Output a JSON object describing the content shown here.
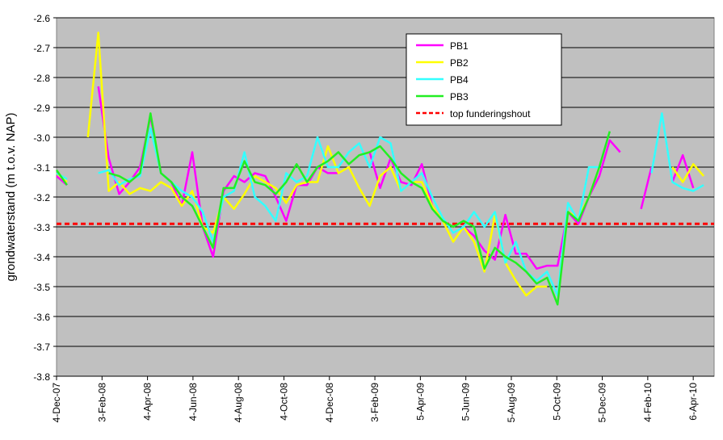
{
  "chart_data": {
    "type": "line",
    "y_label": "grondwaterstand (m t.o.v. NAP)",
    "x": [
      "2007-12-04",
      "2007-12-18",
      "2008-01-01",
      "2008-01-15",
      "2008-01-29",
      "2008-02-12",
      "2008-02-26",
      "2008-03-11",
      "2008-03-25",
      "2008-04-08",
      "2008-04-22",
      "2008-05-06",
      "2008-05-20",
      "2008-06-03",
      "2008-06-17",
      "2008-07-01",
      "2008-07-15",
      "2008-07-29",
      "2008-08-12",
      "2008-08-26",
      "2008-09-09",
      "2008-09-23",
      "2008-10-07",
      "2008-10-21",
      "2008-11-04",
      "2008-11-18",
      "2008-12-02",
      "2008-12-16",
      "2008-12-30",
      "2009-01-13",
      "2009-01-27",
      "2009-02-10",
      "2009-02-24",
      "2009-03-10",
      "2009-03-24",
      "2009-04-07",
      "2009-04-21",
      "2009-05-05",
      "2009-05-19",
      "2009-06-02",
      "2009-06-16",
      "2009-06-30",
      "2009-07-14",
      "2009-07-28",
      "2009-08-11",
      "2009-08-25",
      "2009-09-08",
      "2009-09-22",
      "2009-10-06",
      "2009-10-20",
      "2009-11-03",
      "2009-11-17",
      "2009-12-01",
      "2009-12-15",
      "2009-12-29",
      "2010-01-12",
      "2010-01-26",
      "2010-02-09",
      "2010-02-23",
      "2010-03-09",
      "2010-03-23",
      "2010-04-06",
      "2010-04-20"
    ],
    "series": [
      {
        "name": "PB1",
        "color": "#ff00ff",
        "values": [
          -3.13,
          -3.16,
          null,
          null,
          -2.83,
          -3.07,
          -3.19,
          -3.15,
          -3.1,
          -2.93,
          -3.12,
          -3.15,
          -3.23,
          -3.05,
          -3.3,
          -3.4,
          -3.18,
          -3.13,
          -3.15,
          -3.12,
          -3.13,
          -3.2,
          -3.28,
          -3.16,
          -3.16,
          -3.1,
          -3.12,
          -3.12,
          null,
          null,
          -3.05,
          -3.17,
          -3.07,
          -3.15,
          -3.16,
          -3.09,
          -3.23,
          -3.28,
          null,
          -3.3,
          -3.33,
          -3.38,
          -3.41,
          -3.26,
          -3.39,
          -3.39,
          -3.44,
          -3.43,
          -3.43,
          -3.25,
          -3.29,
          -3.2,
          -3.13,
          -3.01,
          -3.05,
          null,
          -3.24,
          -3.1,
          null,
          -3.15,
          -3.06,
          -3.17,
          null
        ]
      },
      {
        "name": "PB2",
        "color": "#ffff00",
        "values": [
          -3.12,
          -3.15,
          null,
          -3.0,
          -2.65,
          -3.18,
          -3.15,
          -3.19,
          -3.17,
          -3.18,
          -3.15,
          -3.17,
          -3.23,
          -3.18,
          -3.3,
          -3.32,
          -3.2,
          -3.24,
          -3.19,
          -3.13,
          -3.15,
          -3.17,
          -3.22,
          -3.16,
          -3.15,
          -3.15,
          -3.03,
          -3.12,
          -3.1,
          -3.17,
          -3.23,
          -3.13,
          -3.1,
          -3.18,
          -3.15,
          -3.15,
          -3.23,
          -3.28,
          -3.35,
          -3.3,
          -3.35,
          -3.45,
          -3.26,
          -3.42,
          -3.48,
          -3.53,
          -3.5,
          -3.5,
          null,
          -3.25,
          -3.27,
          -3.2,
          -3.1,
          null,
          null,
          null,
          null,
          null,
          null,
          -3.1,
          -3.15,
          -3.09,
          -3.13
        ]
      },
      {
        "name": "PB4",
        "color": "#33ffff",
        "values": [
          -3.12,
          -3.14,
          null,
          null,
          -3.12,
          -3.11,
          -3.16,
          -3.14,
          -3.13,
          -2.97,
          -3.12,
          -3.15,
          -3.18,
          -3.2,
          -3.25,
          -3.35,
          -3.2,
          -3.18,
          -3.05,
          -3.2,
          -3.23,
          -3.28,
          -3.12,
          -3.15,
          -3.13,
          -3.0,
          -3.1,
          -3.1,
          -3.05,
          -3.02,
          -3.1,
          -3.0,
          -3.02,
          -3.18,
          -3.15,
          -3.12,
          -3.2,
          -3.27,
          -3.32,
          -3.3,
          -3.25,
          -3.3,
          -3.25,
          -3.42,
          -3.35,
          -3.45,
          -3.48,
          -3.45,
          -3.53,
          -3.22,
          -3.28,
          -3.1,
          -3.1,
          null,
          null,
          null,
          null,
          -3.12,
          -2.92,
          -3.15,
          -3.17,
          -3.18,
          -3.16
        ]
      },
      {
        "name": "PB3",
        "color": "#22ee22",
        "values": [
          -3.11,
          -3.16,
          null,
          null,
          null,
          -3.12,
          -3.13,
          -3.15,
          -3.12,
          -2.92,
          -3.12,
          -3.15,
          -3.2,
          -3.23,
          -3.3,
          -3.37,
          -3.17,
          -3.17,
          -3.08,
          -3.15,
          -3.16,
          -3.19,
          -3.15,
          -3.09,
          -3.15,
          -3.1,
          -3.08,
          -3.05,
          -3.09,
          -3.06,
          -3.05,
          -3.03,
          -3.07,
          -3.12,
          -3.15,
          -3.17,
          -3.24,
          -3.28,
          -3.3,
          -3.28,
          -3.3,
          -3.44,
          -3.37,
          -3.4,
          -3.42,
          -3.45,
          -3.49,
          -3.47,
          -3.56,
          -3.25,
          -3.28,
          -3.2,
          -3.1,
          -2.98,
          null,
          null,
          null,
          null,
          null,
          null,
          null,
          null,
          null
        ]
      }
    ],
    "reference_lines": [
      {
        "name": "top funderingshout",
        "value": -3.29,
        "color": "#ff0000"
      }
    ],
    "xlim": [
      "2007-12-04",
      "2010-05-04"
    ],
    "xticks": [
      {
        "value": "2007-12-04",
        "label": "4-Dec-07"
      },
      {
        "value": "2008-02-03",
        "label": "3-Feb-08"
      },
      {
        "value": "2008-04-04",
        "label": "4-Apr-08"
      },
      {
        "value": "2008-06-04",
        "label": "4-Jun-08"
      },
      {
        "value": "2008-08-04",
        "label": "4-Aug-08"
      },
      {
        "value": "2008-10-04",
        "label": "4-Oct-08"
      },
      {
        "value": "2008-12-04",
        "label": "4-Dec-08"
      },
      {
        "value": "2009-02-03",
        "label": "3-Feb-09"
      },
      {
        "value": "2009-04-05",
        "label": "5-Apr-09"
      },
      {
        "value": "2009-06-05",
        "label": "5-Jun-09"
      },
      {
        "value": "2009-08-05",
        "label": "5-Aug-09"
      },
      {
        "value": "2009-10-05",
        "label": "5-Oct-09"
      },
      {
        "value": "2009-12-05",
        "label": "5-Dec-09"
      },
      {
        "value": "2010-02-04",
        "label": "4-Feb-10"
      },
      {
        "value": "2010-04-06",
        "label": "6-Apr-10"
      }
    ],
    "ylim": [
      -3.8,
      -2.6
    ],
    "yticks": [
      -3.8,
      -3.7,
      -3.6,
      -3.5,
      -3.4,
      -3.3,
      -3.2,
      -3.1,
      {
        "value": -3,
        "label": "-3.0"
      },
      -2.9,
      -2.8,
      -2.7,
      -2.6
    ],
    "grid": true,
    "legend": "top-center"
  }
}
